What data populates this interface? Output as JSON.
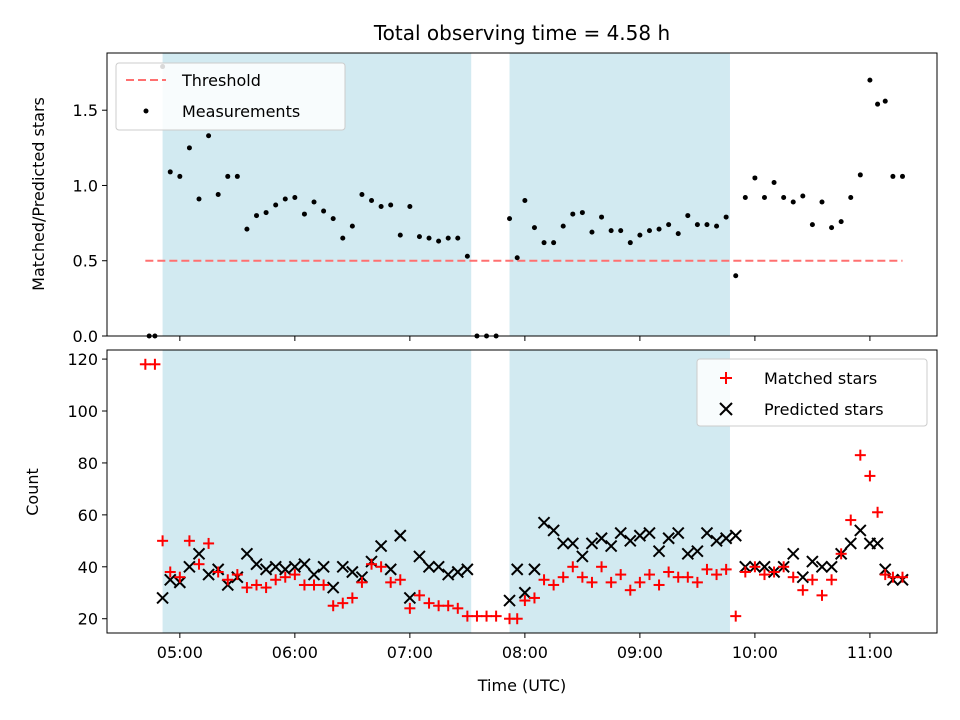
{
  "chart_data": [
    {
      "type": "scatter",
      "title": "Total observing time = 4.58 h",
      "xlabel": "",
      "ylabel": "Matched/Predicted stars",
      "ylim": [
        0,
        1.88
      ],
      "yticks": [
        "0.0",
        "0.5",
        "1.0",
        "1.5"
      ],
      "legend_placement": "upper-left",
      "shaded_intervals": [
        [
          "04:51",
          "07:32"
        ],
        [
          "07:52",
          "09:47"
        ]
      ],
      "shade_color": "#add8e6",
      "threshold": {
        "name": "Threshold",
        "value": 0.5,
        "x_range": [
          "04:42",
          "11:17"
        ],
        "color": "#ff7070"
      },
      "series": [
        {
          "name": "Measurements",
          "color": "#000000",
          "x": [
            "04:44",
            "04:47",
            "04:51",
            "04:55",
            "05:00",
            "05:05",
            "05:10",
            "05:15",
            "05:20",
            "05:25",
            "05:30",
            "05:35",
            "05:40",
            "05:45",
            "05:50",
            "05:55",
            "06:00",
            "06:05",
            "06:10",
            "06:15",
            "06:20",
            "06:25",
            "06:30",
            "06:35",
            "06:40",
            "06:45",
            "06:50",
            "06:55",
            "07:00",
            "07:05",
            "07:10",
            "07:15",
            "07:20",
            "07:25",
            "07:30",
            "07:35",
            "07:40",
            "07:45",
            "07:52",
            "07:56",
            "08:00",
            "08:05",
            "08:10",
            "08:15",
            "08:20",
            "08:25",
            "08:30",
            "08:35",
            "08:40",
            "08:45",
            "08:50",
            "08:55",
            "09:00",
            "09:05",
            "09:10",
            "09:15",
            "09:20",
            "09:25",
            "09:30",
            "09:35",
            "09:40",
            "09:45",
            "09:50",
            "09:55",
            "10:00",
            "10:05",
            "10:10",
            "10:15",
            "10:20",
            "10:25",
            "10:30",
            "10:35",
            "10:40",
            "10:45",
            "10:50",
            "10:55",
            "11:00",
            "11:04",
            "11:08",
            "11:12",
            "11:17"
          ],
          "y": [
            0,
            0,
            1.79,
            1.09,
            1.06,
            1.25,
            0.91,
            1.33,
            0.94,
            1.06,
            1.06,
            0.71,
            0.8,
            0.82,
            0.87,
            0.91,
            0.92,
            0.81,
            0.89,
            0.83,
            0.78,
            0.65,
            0.73,
            0.94,
            0.9,
            0.86,
            0.87,
            0.67,
            0.86,
            0.66,
            0.65,
            0.63,
            0.65,
            0.65,
            0.53,
            0,
            0,
            0,
            0.78,
            0.52,
            0.9,
            0.72,
            0.62,
            0.62,
            0.73,
            0.81,
            0.82,
            0.69,
            0.79,
            0.7,
            0.7,
            0.62,
            0.67,
            0.7,
            0.71,
            0.74,
            0.68,
            0.8,
            0.74,
            0.74,
            0.73,
            0.79,
            0.4,
            0.92,
            1.05,
            0.92,
            1.02,
            0.92,
            0.89,
            0.93,
            0.74,
            0.89,
            0.72,
            0.76,
            0.92,
            1.07,
            1.7,
            1.54,
            1.56,
            1.06,
            1.06
          ]
        }
      ]
    },
    {
      "type": "scatter",
      "title": "",
      "xlabel": "Time (UTC)",
      "ylabel": "Count",
      "ylim": [
        14.5,
        123.5
      ],
      "yticks": [
        "20",
        "40",
        "60",
        "80",
        "100",
        "120"
      ],
      "xlim": [
        "04:22",
        "11:35"
      ],
      "xticks": [
        "05:00",
        "06:00",
        "07:00",
        "08:00",
        "09:00",
        "10:00",
        "11:00"
      ],
      "legend_placement": "upper-right",
      "shaded_intervals": [
        [
          "04:51",
          "07:32"
        ],
        [
          "07:52",
          "09:47"
        ]
      ],
      "shade_color": "#add8e6",
      "series": [
        {
          "name": "Matched stars",
          "marker": "+",
          "color": "#ff0000",
          "x": [
            "04:42",
            "04:47",
            "04:51",
            "04:55",
            "05:00",
            "05:05",
            "05:10",
            "05:15",
            "05:20",
            "05:25",
            "05:30",
            "05:35",
            "05:40",
            "05:45",
            "05:50",
            "05:55",
            "06:00",
            "06:05",
            "06:10",
            "06:15",
            "06:20",
            "06:25",
            "06:30",
            "06:35",
            "06:40",
            "06:45",
            "06:50",
            "06:55",
            "07:00",
            "07:05",
            "07:10",
            "07:15",
            "07:20",
            "07:25",
            "07:30",
            "07:35",
            "07:40",
            "07:45",
            "07:52",
            "07:56",
            "08:00",
            "08:05",
            "08:10",
            "08:15",
            "08:20",
            "08:25",
            "08:30",
            "08:35",
            "08:40",
            "08:45",
            "08:50",
            "08:55",
            "09:00",
            "09:05",
            "09:10",
            "09:15",
            "09:20",
            "09:25",
            "09:30",
            "09:35",
            "09:40",
            "09:45",
            "09:50",
            "09:55",
            "10:00",
            "10:05",
            "10:10",
            "10:15",
            "10:20",
            "10:25",
            "10:30",
            "10:35",
            "10:40",
            "10:45",
            "10:50",
            "10:55",
            "11:00",
            "11:04",
            "11:08",
            "11:12",
            "11:17"
          ],
          "y": [
            118,
            118,
            50,
            38,
            36,
            50,
            41,
            49,
            38,
            35,
            37,
            32,
            33,
            32,
            35,
            36,
            37,
            33,
            33,
            33,
            25,
            26,
            28,
            34,
            41,
            40,
            34,
            35,
            24,
            29,
            26,
            25,
            25,
            24,
            21,
            21,
            21,
            21,
            20,
            20,
            27,
            28,
            35,
            33,
            36,
            40,
            36,
            34,
            40,
            34,
            37,
            31,
            34,
            37,
            33,
            38,
            36,
            36,
            34,
            39,
            37,
            39,
            21,
            38,
            40,
            37,
            38,
            40,
            36,
            31,
            35,
            29,
            35,
            45,
            58,
            83,
            75,
            61,
            37,
            36,
            36
          ],
          "note": ""
        },
        {
          "name": "Predicted stars",
          "marker": "x",
          "color": "#000000",
          "x": [
            "04:51",
            "04:55",
            "05:00",
            "05:05",
            "05:10",
            "05:15",
            "05:20",
            "05:25",
            "05:30",
            "05:35",
            "05:40",
            "05:45",
            "05:50",
            "05:55",
            "06:00",
            "06:05",
            "06:10",
            "06:15",
            "06:20",
            "06:25",
            "06:30",
            "06:35",
            "06:40",
            "06:45",
            "06:50",
            "06:55",
            "07:00",
            "07:05",
            "07:10",
            "07:15",
            "07:20",
            "07:25",
            "07:30",
            "07:52",
            "07:56",
            "08:00",
            "08:05",
            "08:10",
            "08:15",
            "08:20",
            "08:25",
            "08:30",
            "08:35",
            "08:40",
            "08:45",
            "08:50",
            "08:55",
            "09:00",
            "09:05",
            "09:10",
            "09:15",
            "09:20",
            "09:25",
            "09:30",
            "09:35",
            "09:40",
            "09:45",
            "09:50",
            "09:55",
            "10:00",
            "10:05",
            "10:10",
            "10:15",
            "10:20",
            "10:25",
            "10:30",
            "10:35",
            "10:40",
            "10:45",
            "10:50",
            "10:55",
            "11:00",
            "11:04",
            "11:08",
            "11:12",
            "11:17"
          ],
          "y": [
            28,
            35,
            34,
            40,
            45,
            37,
            39,
            33,
            36,
            45,
            41,
            39,
            40,
            39,
            40,
            41,
            37,
            40,
            32,
            40,
            38,
            36,
            42,
            48,
            39,
            52,
            28,
            44,
            40,
            40,
            37,
            38,
            39,
            27,
            39,
            30,
            39,
            57,
            54,
            49,
            49,
            44,
            49,
            51,
            48,
            53,
            50,
            52,
            53,
            46,
            51,
            53,
            45,
            46,
            53,
            50,
            51,
            52,
            40,
            40,
            40,
            38,
            40,
            45,
            36,
            42,
            40,
            40,
            45,
            49,
            54,
            49,
            49,
            39,
            35,
            35
          ]
        }
      ]
    }
  ]
}
